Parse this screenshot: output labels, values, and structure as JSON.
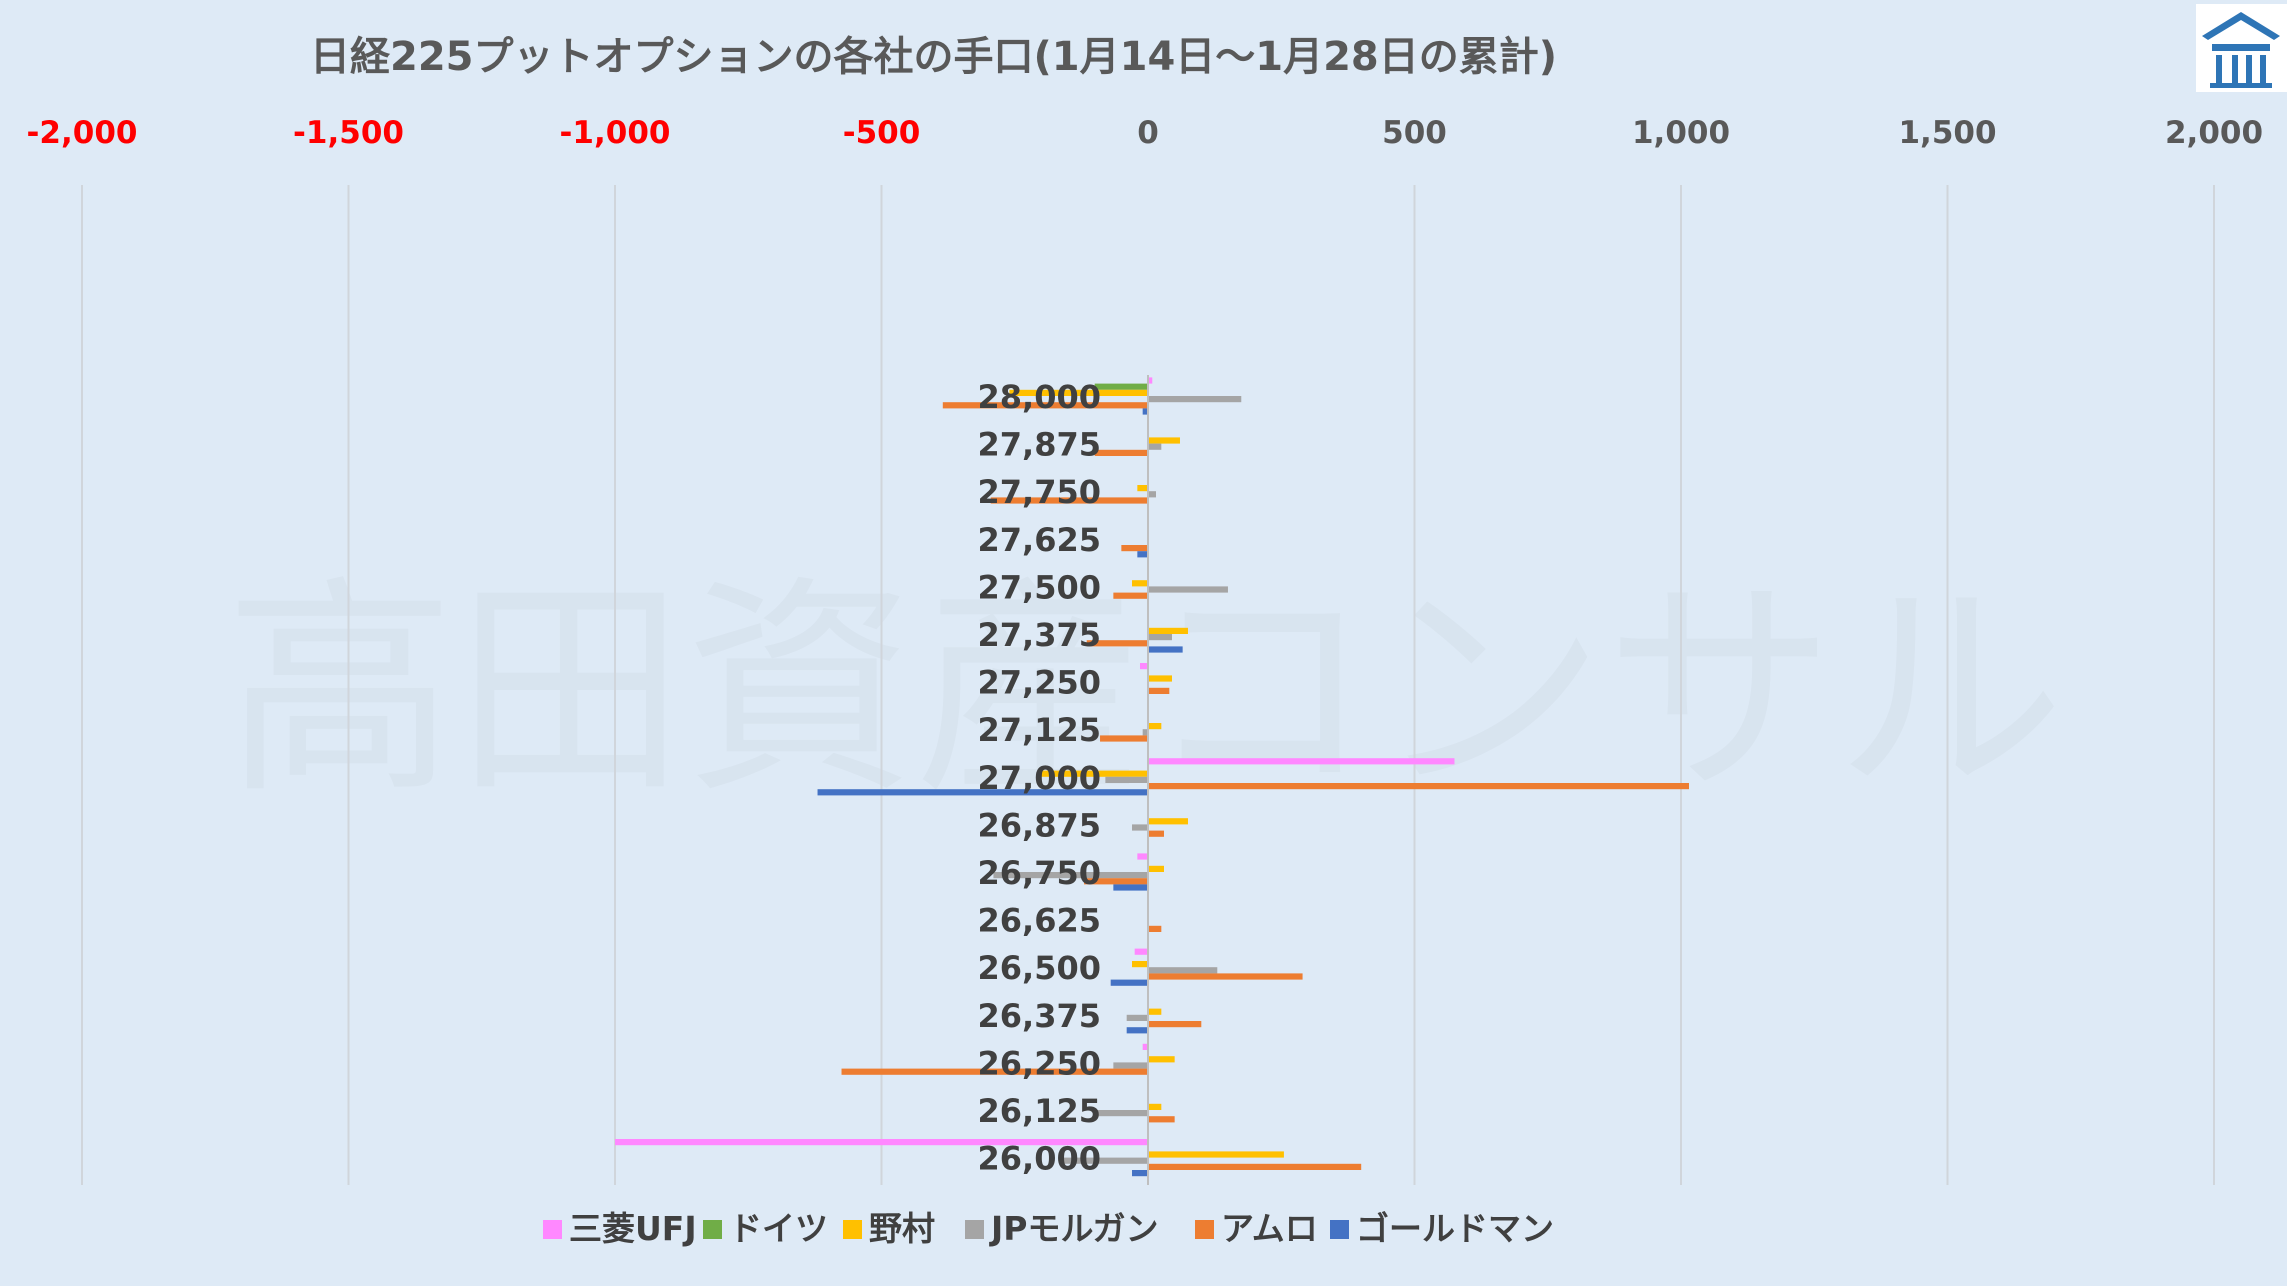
{
  "chart_data": {
    "type": "bar",
    "orientation": "horizontal",
    "title": "日経225プットオプションの各社の手口(1月14日～1月28日の累計)",
    "watermark": "高田資産コンサル",
    "xlim": [
      -2000,
      2000
    ],
    "xticks": [
      {
        "value": -2000,
        "label": "-2,000"
      },
      {
        "value": -1500,
        "label": "-1,500"
      },
      {
        "value": -1000,
        "label": "-1,000"
      },
      {
        "value": -500,
        "label": "-500"
      },
      {
        "value": 0,
        "label": "0"
      },
      {
        "value": 500,
        "label": "500"
      },
      {
        "value": 1000,
        "label": "1,000"
      },
      {
        "value": 1500,
        "label": "1,500"
      },
      {
        "value": 2000,
        "label": "2,000"
      }
    ],
    "negative_tick_color": "#ff0000",
    "positive_tick_color": "#595959",
    "axis_position": "top",
    "grid": true,
    "legend_position": "bottom",
    "categories": [
      "28,000",
      "27,875",
      "27,750",
      "27,625",
      "27,500",
      "27,375",
      "27,250",
      "27,125",
      "27,000",
      "26,875",
      "26,750",
      "26,625",
      "26,500",
      "26,375",
      "26,250",
      "26,125",
      "26,000"
    ],
    "series": [
      {
        "name": "三菱UFJ",
        "color": "#ff88ff",
        "values": [
          8,
          0,
          0,
          0,
          0,
          0,
          -15,
          0,
          575,
          0,
          -20,
          0,
          -25,
          0,
          -10,
          0,
          -1000
        ]
      },
      {
        "name": "ドイツ",
        "color": "#70ad47",
        "values": [
          -100,
          0,
          0,
          0,
          0,
          0,
          0,
          0,
          0,
          0,
          0,
          0,
          0,
          0,
          0,
          0,
          0
        ]
      },
      {
        "name": "野村",
        "color": "#ffc000",
        "values": [
          -260,
          60,
          -20,
          0,
          -30,
          75,
          45,
          25,
          -200,
          75,
          30,
          0,
          -30,
          25,
          50,
          25,
          255
        ]
      },
      {
        "name": "JPモルガン",
        "color": "#a5a5a5",
        "values": [
          175,
          25,
          15,
          0,
          150,
          45,
          0,
          -10,
          -80,
          -30,
          -290,
          0,
          130,
          -40,
          -65,
          -95,
          -160
        ]
      },
      {
        "name": "アムロ",
        "color": "#ed7d31",
        "values": [
          -385,
          -100,
          -295,
          -50,
          -65,
          -115,
          40,
          -90,
          1015,
          30,
          -120,
          25,
          290,
          100,
          -575,
          50,
          400
        ]
      },
      {
        "name": "ゴールドマン",
        "color": "#4472c4",
        "values": [
          -10,
          0,
          0,
          -20,
          0,
          65,
          0,
          0,
          -620,
          0,
          -65,
          0,
          -70,
          -40,
          0,
          0,
          -30
        ]
      }
    ]
  },
  "logo": {
    "color": "#2e75b6",
    "icon": "shrine-logo-icon"
  }
}
